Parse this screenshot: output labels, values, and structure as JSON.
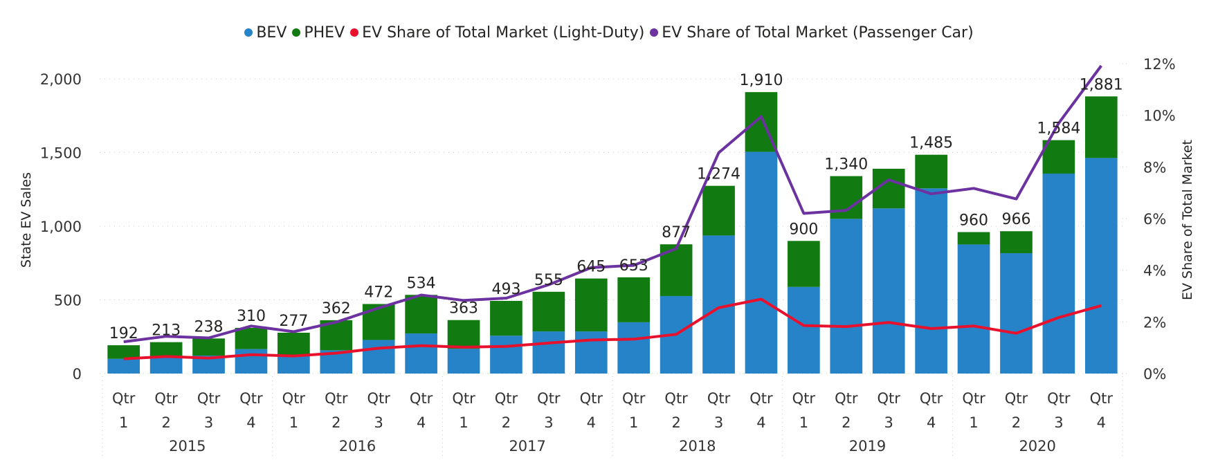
{
  "chart_data": {
    "type": "bar",
    "subtype": "stacked-bar-with-lines",
    "title": "",
    "legend_position": "top-center",
    "legend": [
      {
        "name": "BEV",
        "color": "#2783C8"
      },
      {
        "name": "PHEV",
        "color": "#117A10"
      },
      {
        "name": "EV Share of Total Market (Light-Duty)",
        "color": "#E8112D"
      },
      {
        "name": "EV Share of Total Market (Passenger Car)",
        "color": "#6B32A0"
      }
    ],
    "ylabel": "State EV Sales",
    "y2label": "EV Share of Total Market",
    "ylim": [
      0,
      2000
    ],
    "yticks": [
      "0",
      "500",
      "1,000",
      "1,500",
      "2,000"
    ],
    "ytick_values": [
      0,
      500,
      1000,
      1500,
      2000
    ],
    "y2lim": [
      0,
      12
    ],
    "y2ticks": [
      "0%",
      "2%",
      "4%",
      "6%",
      "8%",
      "10%",
      "12%"
    ],
    "y2tick_values": [
      0,
      2,
      4,
      6,
      8,
      10,
      12
    ],
    "grid": true,
    "x_quarters": [
      "Qtr 1",
      "Qtr 2",
      "Qtr 3",
      "Qtr 4",
      "Qtr 1",
      "Qtr 2",
      "Qtr 3",
      "Qtr 4",
      "Qtr 1",
      "Qtr 2",
      "Qtr 3",
      "Qtr 4",
      "Qtr 1",
      "Qtr 2",
      "Qtr 3",
      "Qtr 4",
      "Qtr 1",
      "Qtr 2",
      "Qtr 3",
      "Qtr 4",
      "Qtr 1",
      "Qtr 2",
      "Qtr 3",
      "Qtr 4"
    ],
    "x_years": [
      "2015",
      "2016",
      "2017",
      "2018",
      "2019",
      "2020"
    ],
    "totals": [
      192,
      213,
      238,
      310,
      277,
      362,
      472,
      534,
      363,
      493,
      555,
      645,
      653,
      877,
      1274,
      1910,
      900,
      1340,
      1390,
      1485,
      960,
      966,
      1584,
      1881
    ],
    "total_labels": [
      "192",
      "213",
      "238",
      "310",
      "277",
      "362",
      "472",
      "534",
      "363",
      "493",
      "555",
      "645",
      "653",
      "877",
      "1,274",
      "1,910",
      "900",
      "1,340",
      "",
      "1,485",
      "960",
      "966",
      "1,584",
      "1,881"
    ],
    "series": [
      {
        "name": "BEV",
        "axis": "left",
        "kind": "bar",
        "values": [
          100,
          113,
          122,
          166,
          123,
          158,
          228,
          272,
          168,
          257,
          286,
          286,
          348,
          526,
          937,
          1505,
          588,
          1050,
          1121,
          1257,
          876,
          817,
          1357,
          1463
        ]
      },
      {
        "name": "PHEV",
        "axis": "left",
        "kind": "bar",
        "values": [
          92,
          100,
          116,
          144,
          154,
          204,
          244,
          262,
          195,
          236,
          269,
          359,
          305,
          351,
          337,
          405,
          312,
          290,
          269,
          228,
          84,
          149,
          227,
          418
        ]
      },
      {
        "name": "EV Share of Total Market (Light-Duty)",
        "axis": "right",
        "kind": "line",
        "unit": "%",
        "values": [
          0.57,
          0.66,
          0.6,
          0.73,
          0.68,
          0.79,
          0.98,
          1.08,
          1.02,
          1.05,
          1.18,
          1.3,
          1.33,
          1.52,
          2.55,
          2.88,
          1.86,
          1.82,
          1.98,
          1.74,
          1.84,
          1.56,
          2.17,
          2.63
        ]
      },
      {
        "name": "EV Share of Total Market (Passenger Car)",
        "axis": "right",
        "kind": "line",
        "unit": "%",
        "values": [
          1.23,
          1.44,
          1.38,
          1.84,
          1.62,
          1.99,
          2.54,
          3.04,
          2.83,
          2.92,
          3.44,
          4.1,
          4.19,
          4.84,
          8.55,
          9.95,
          6.2,
          6.32,
          7.5,
          6.96,
          7.17,
          6.76,
          9.7,
          11.92
        ]
      }
    ]
  }
}
